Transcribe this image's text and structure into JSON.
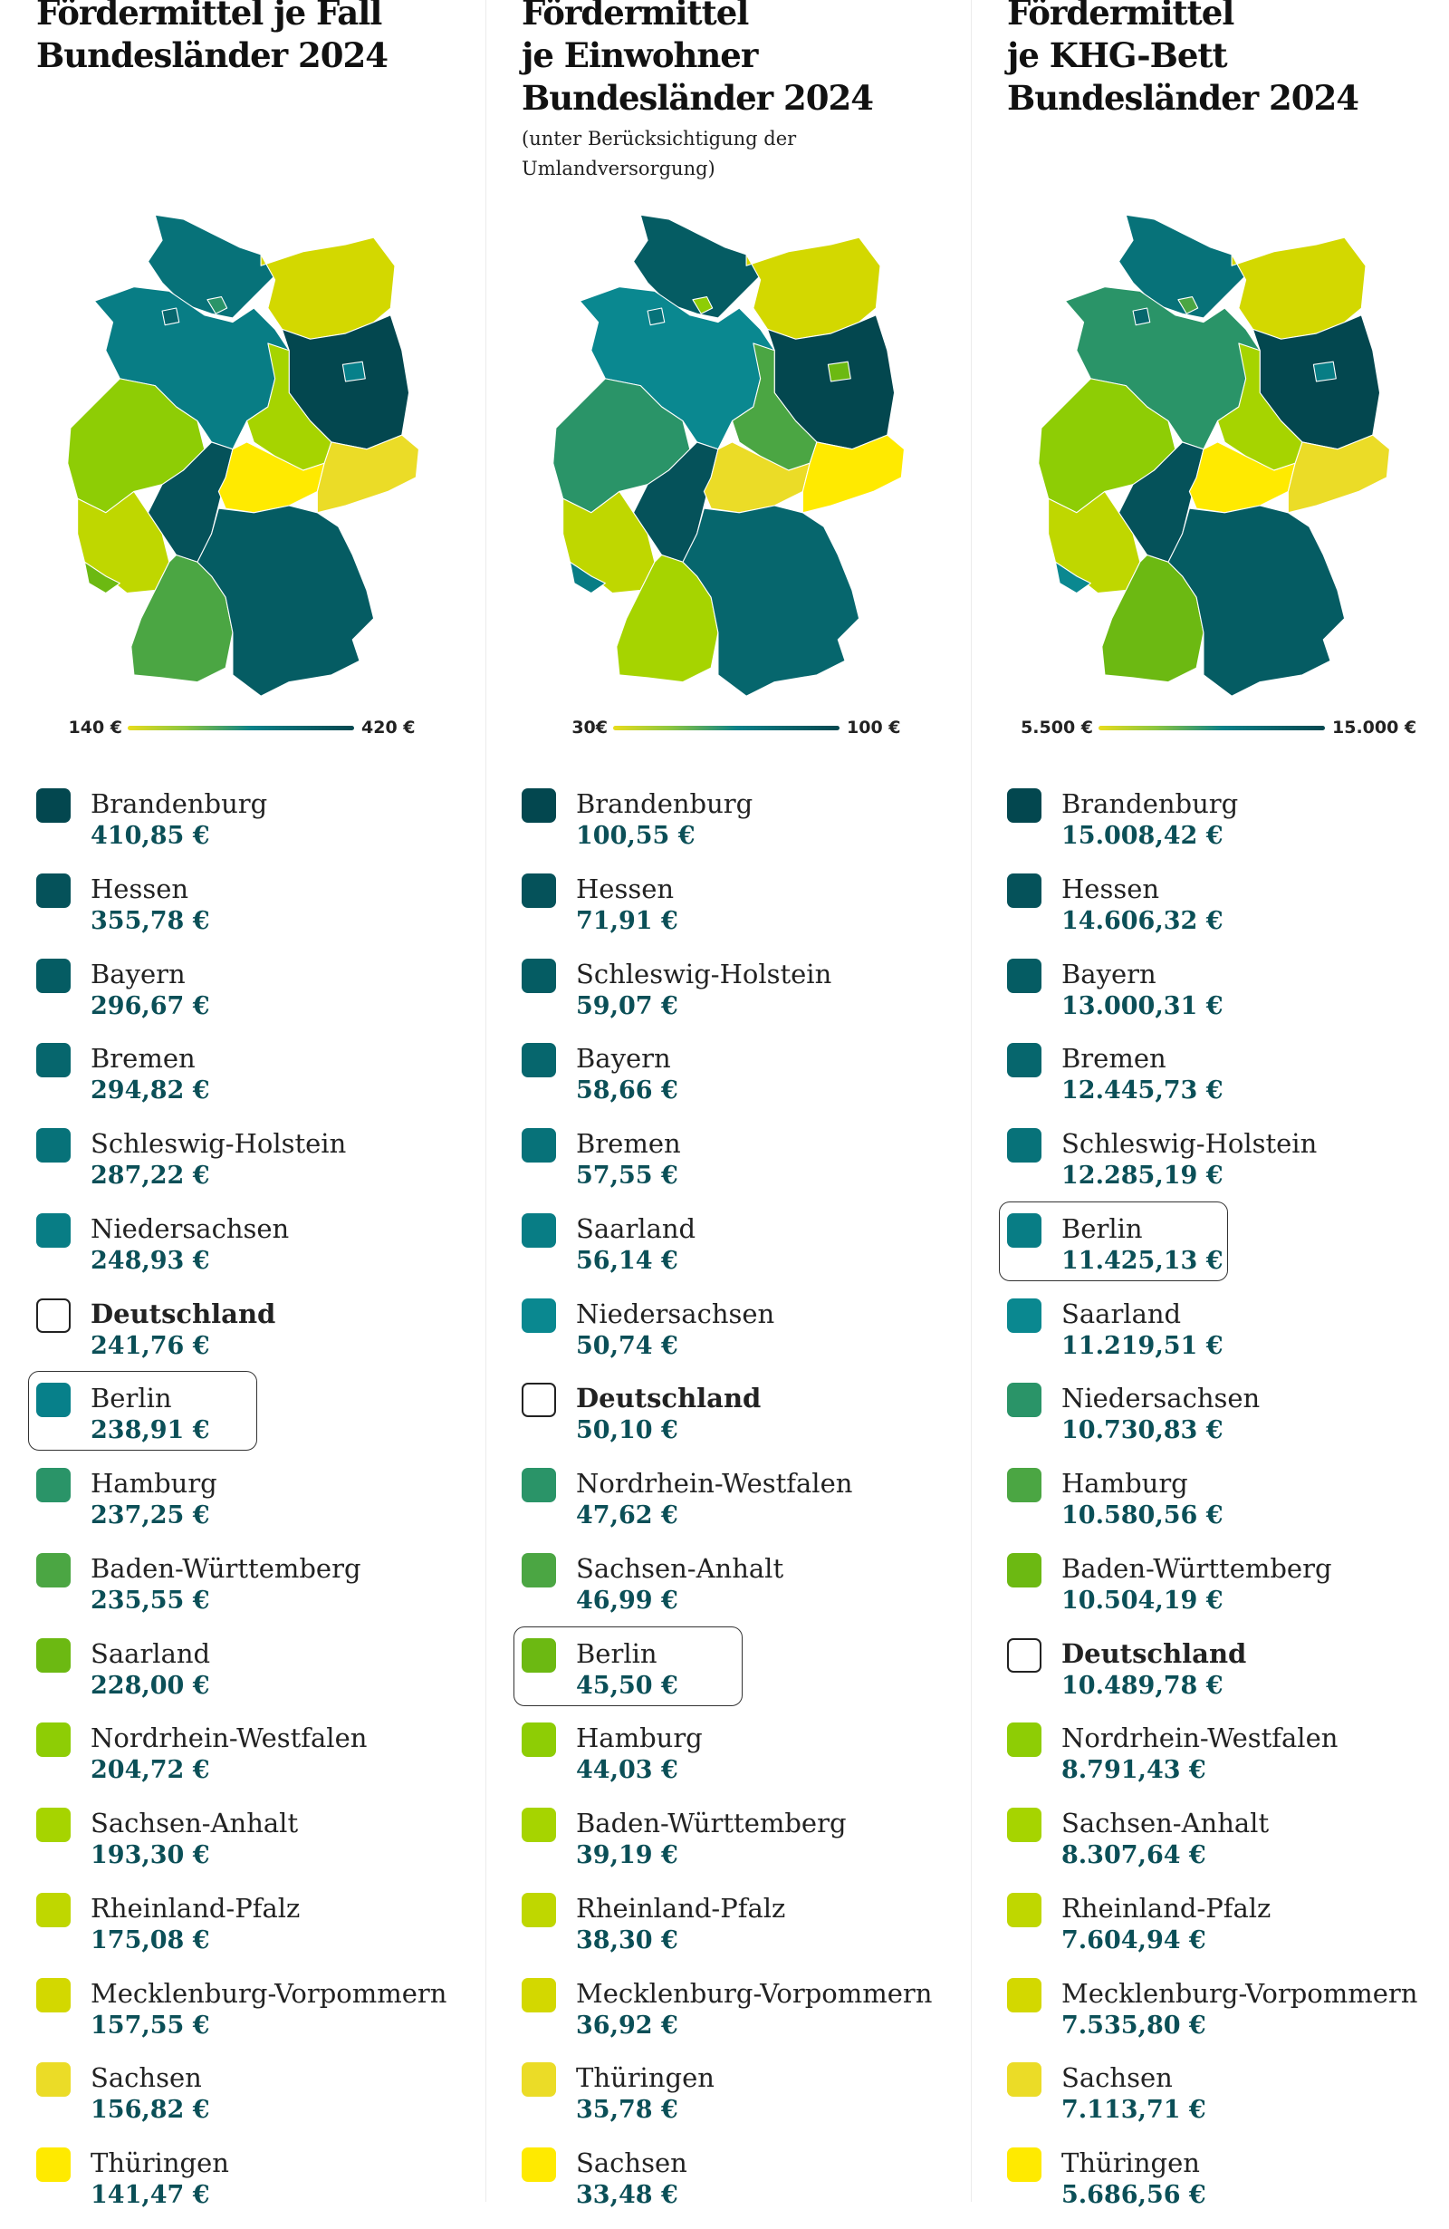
{
  "columns": [
    {
      "title_lines": [
        "Fördermittel je Fall",
        "Bundesländer 2024"
      ],
      "subtitle_lines": [],
      "legend": {
        "min_label": "140 €",
        "max_label": "420 €"
      },
      "items": [
        {
          "name": "Brandenburg",
          "value": "410,85 €",
          "color": "#03474f"
        },
        {
          "name": "Hessen",
          "value": "355,78 €",
          "color": "#05525a"
        },
        {
          "name": "Bayern",
          "value": "296,67 €",
          "color": "#055c63"
        },
        {
          "name": "Bremen",
          "value": "294,82 €",
          "color": "#06666d"
        },
        {
          "name": "Schleswig-Holstein",
          "value": "287,22 €",
          "color": "#077279"
        },
        {
          "name": "Niedersachsen",
          "value": "248,93 €",
          "color": "#087d85"
        },
        {
          "name": "Deutschland",
          "value": "241,76 €",
          "color": "#ffffff",
          "total": true
        },
        {
          "name": "Berlin",
          "value": "238,91 €",
          "color": "#07808a",
          "highlight": true
        },
        {
          "name": "Hamburg",
          "value": "237,25 €",
          "color": "#2a9468"
        },
        {
          "name": "Baden-Württemberg",
          "value": "235,55 €",
          "color": "#4ba643"
        },
        {
          "name": "Saarland",
          "value": "228,00 €",
          "color": "#6cb912"
        },
        {
          "name": "Nordrhein-Westfalen",
          "value": "204,72 €",
          "color": "#8ecd05"
        },
        {
          "name": "Sachsen-Anhalt",
          "value": "193,30 €",
          "color": "#a6d400"
        },
        {
          "name": "Rheinland-Pfalz",
          "value": "175,08 €",
          "color": "#bfd700"
        },
        {
          "name": "Mecklenburg-Vorpommern",
          "value": "157,55 €",
          "color": "#d3d800"
        },
        {
          "name": "Sachsen",
          "value": "156,82 €",
          "color": "#ebdc27"
        },
        {
          "name": "Thüringen",
          "value": "141,47 €",
          "color": "#ffea00"
        }
      ]
    },
    {
      "title_lines": [
        "Fördermittel",
        "je Einwohner",
        "Bundesländer 2024"
      ],
      "subtitle_lines": [
        "(unter Berücksichtigung der",
        "Umlandversorgung)"
      ],
      "legend": {
        "min_label": "30€",
        "max_label": "100 €"
      },
      "items": [
        {
          "name": "Brandenburg",
          "value": "100,55 €",
          "color": "#03474f"
        },
        {
          "name": "Hessen",
          "value": "71,91 €",
          "color": "#05525a"
        },
        {
          "name": "Schleswig-Holstein",
          "value": "59,07 €",
          "color": "#055c63"
        },
        {
          "name": "Bayern",
          "value": "58,66 €",
          "color": "#06666d"
        },
        {
          "name": "Bremen",
          "value": "57,55 €",
          "color": "#077279"
        },
        {
          "name": "Saarland",
          "value": "56,14 €",
          "color": "#087d85"
        },
        {
          "name": "Niedersachsen",
          "value": "50,74 €",
          "color": "#0a8890"
        },
        {
          "name": "Deutschland",
          "value": "50,10 €",
          "color": "#ffffff",
          "total": true
        },
        {
          "name": "Nordrhein-Westfalen",
          "value": "47,62 €",
          "color": "#2a9468"
        },
        {
          "name": "Sachsen-Anhalt",
          "value": "46,99 €",
          "color": "#4ba643"
        },
        {
          "name": "Berlin",
          "value": "45,50 €",
          "color": "#6cb912",
          "highlight": true
        },
        {
          "name": "Hamburg",
          "value": "44,03 €",
          "color": "#8ecd05"
        },
        {
          "name": "Baden-Württemberg",
          "value": "39,19 €",
          "color": "#a6d400"
        },
        {
          "name": "Rheinland-Pfalz",
          "value": "38,30 €",
          "color": "#bfd700"
        },
        {
          "name": "Mecklenburg-Vorpommern",
          "value": "36,92 €",
          "color": "#d3d800"
        },
        {
          "name": "Thüringen",
          "value": "35,78 €",
          "color": "#ebdc27"
        },
        {
          "name": "Sachsen",
          "value": "33,48 €",
          "color": "#ffea00"
        }
      ]
    },
    {
      "title_lines": [
        "Fördermittel",
        "je KHG-Bett",
        "Bundesländer 2024"
      ],
      "subtitle_lines": [],
      "legend": {
        "min_label": "5.500 €",
        "max_label": "15.000 €"
      },
      "items": [
        {
          "name": "Brandenburg",
          "value": "15.008,42 €",
          "color": "#03474f"
        },
        {
          "name": "Hessen",
          "value": "14.606,32 €",
          "color": "#05525a"
        },
        {
          "name": "Bayern",
          "value": "13.000,31 €",
          "color": "#055c63"
        },
        {
          "name": "Bremen",
          "value": "12.445,73 €",
          "color": "#06666d"
        },
        {
          "name": "Schleswig-Holstein",
          "value": "12.285,19 €",
          "color": "#077279"
        },
        {
          "name": "Berlin",
          "value": "11.425,13 €",
          "color": "#087d85",
          "highlight": true
        },
        {
          "name": "Saarland",
          "value": "11.219,51 €",
          "color": "#0a8890"
        },
        {
          "name": "Niedersachsen",
          "value": "10.730,83 €",
          "color": "#2a9468"
        },
        {
          "name": "Hamburg",
          "value": "10.580,56 €",
          "color": "#4ba643"
        },
        {
          "name": "Baden-Württemberg",
          "value": "10.504,19 €",
          "color": "#6cb912"
        },
        {
          "name": "Deutschland",
          "value": "10.489,78 €",
          "color": "#ffffff",
          "total": true
        },
        {
          "name": "Nordrhein-Westfalen",
          "value": "8.791,43 €",
          "color": "#8ecd05"
        },
        {
          "name": "Sachsen-Anhalt",
          "value": "8.307,64 €",
          "color": "#a6d400"
        },
        {
          "name": "Rheinland-Pfalz",
          "value": "7.604,94 €",
          "color": "#bfd700"
        },
        {
          "name": "Mecklenburg-Vorpommern",
          "value": "7.535,80 €",
          "color": "#d3d800"
        },
        {
          "name": "Sachsen",
          "value": "7.113,71 €",
          "color": "#ebdc27"
        },
        {
          "name": "Thüringen",
          "value": "5.686,56 €",
          "color": "#ffea00"
        }
      ]
    }
  ],
  "chart_data": {
    "type": "choropleth",
    "legend_gradient": [
      "#e8dc1c",
      "#8dc63f",
      "#0a8088",
      "#05474f"
    ]
  }
}
